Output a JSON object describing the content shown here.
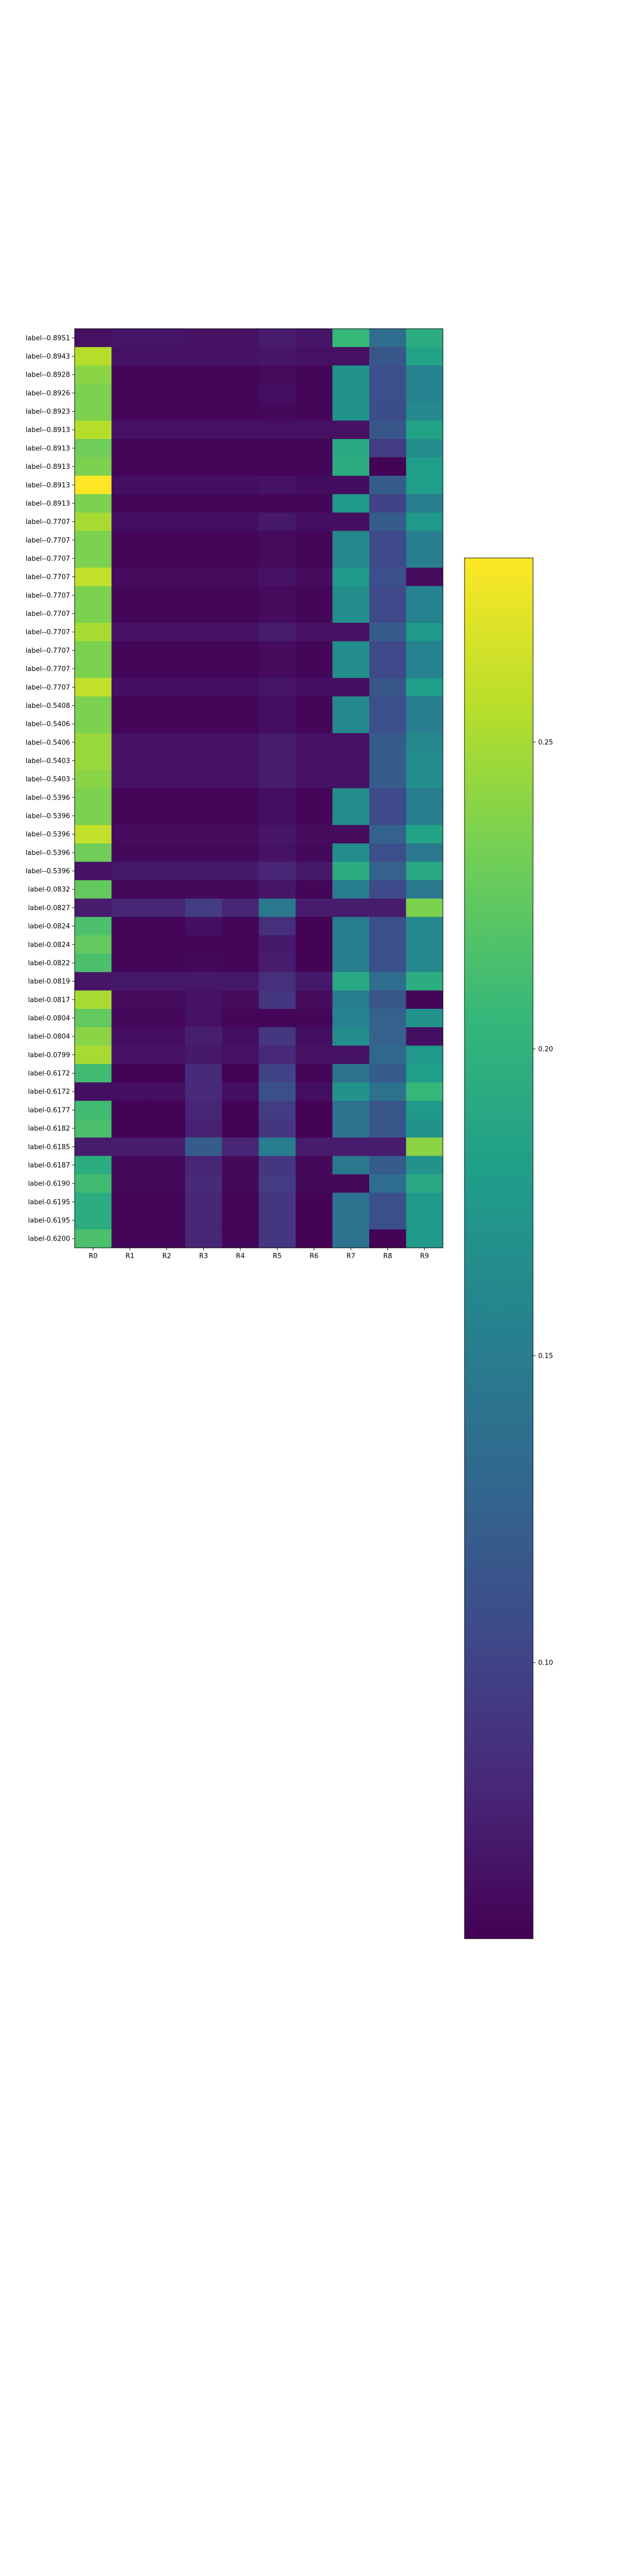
{
  "chart_data": {
    "type": "heatmap",
    "title": "",
    "xlabel": "",
    "ylabel": "",
    "colormap": "viridis",
    "vmin": 0.055,
    "vmax": 0.28,
    "columns": [
      "R0",
      "R1",
      "R2",
      "R3",
      "R4",
      "R5",
      "R6",
      "R7",
      "R8",
      "R9"
    ],
    "rows": [
      {
        "label": "label--0.8951",
        "values": [
          0.065,
          0.068,
          0.068,
          0.066,
          0.066,
          0.072,
          0.068,
          0.205,
          0.135,
          0.195
        ]
      },
      {
        "label": "label--0.8943",
        "values": [
          0.255,
          0.066,
          0.066,
          0.066,
          0.066,
          0.068,
          0.065,
          0.065,
          0.115,
          0.185
        ]
      },
      {
        "label": "label--0.8928",
        "values": [
          0.24,
          0.058,
          0.058,
          0.058,
          0.058,
          0.062,
          0.058,
          0.17,
          0.11,
          0.155
        ]
      },
      {
        "label": "label--0.8926",
        "values": [
          0.235,
          0.058,
          0.058,
          0.058,
          0.058,
          0.064,
          0.058,
          0.17,
          0.11,
          0.155
        ]
      },
      {
        "label": "label--0.8923",
        "values": [
          0.235,
          0.058,
          0.058,
          0.058,
          0.058,
          0.06,
          0.058,
          0.17,
          0.108,
          0.16
        ]
      },
      {
        "label": "label--0.8913",
        "values": [
          0.255,
          0.065,
          0.065,
          0.065,
          0.065,
          0.065,
          0.065,
          0.065,
          0.115,
          0.185
        ]
      },
      {
        "label": "label--0.8913",
        "values": [
          0.23,
          0.058,
          0.058,
          0.058,
          0.058,
          0.058,
          0.058,
          0.19,
          0.095,
          0.165
        ]
      },
      {
        "label": "label--0.8913",
        "values": [
          0.235,
          0.058,
          0.058,
          0.058,
          0.058,
          0.058,
          0.058,
          0.195,
          0.056,
          0.18
        ]
      },
      {
        "label": "label--0.8913",
        "values": [
          0.28,
          0.064,
          0.064,
          0.064,
          0.064,
          0.066,
          0.063,
          0.063,
          0.12,
          0.18
        ]
      },
      {
        "label": "label--0.8913",
        "values": [
          0.235,
          0.058,
          0.058,
          0.058,
          0.058,
          0.058,
          0.058,
          0.175,
          0.1,
          0.15
        ]
      },
      {
        "label": "label--0.7707",
        "values": [
          0.25,
          0.064,
          0.064,
          0.064,
          0.064,
          0.07,
          0.064,
          0.064,
          0.12,
          0.175
        ]
      },
      {
        "label": "label--0.7707",
        "values": [
          0.235,
          0.058,
          0.058,
          0.058,
          0.058,
          0.062,
          0.058,
          0.16,
          0.105,
          0.15
        ]
      },
      {
        "label": "label--0.7707",
        "values": [
          0.235,
          0.058,
          0.058,
          0.058,
          0.058,
          0.062,
          0.058,
          0.16,
          0.105,
          0.15
        ]
      },
      {
        "label": "label--0.7707",
        "values": [
          0.26,
          0.062,
          0.062,
          0.062,
          0.062,
          0.066,
          0.062,
          0.175,
          0.11,
          0.062
        ]
      },
      {
        "label": "label--0.7707",
        "values": [
          0.235,
          0.058,
          0.058,
          0.058,
          0.058,
          0.062,
          0.058,
          0.165,
          0.105,
          0.155
        ]
      },
      {
        "label": "label--0.7707",
        "values": [
          0.235,
          0.058,
          0.058,
          0.058,
          0.058,
          0.062,
          0.058,
          0.165,
          0.105,
          0.155
        ]
      },
      {
        "label": "label--0.7707",
        "values": [
          0.25,
          0.066,
          0.066,
          0.066,
          0.066,
          0.072,
          0.066,
          0.066,
          0.12,
          0.175
        ]
      },
      {
        "label": "label--0.7707",
        "values": [
          0.235,
          0.058,
          0.058,
          0.058,
          0.058,
          0.062,
          0.058,
          0.165,
          0.105,
          0.155
        ]
      },
      {
        "label": "label--0.7707",
        "values": [
          0.235,
          0.058,
          0.058,
          0.058,
          0.058,
          0.062,
          0.058,
          0.165,
          0.105,
          0.155
        ]
      },
      {
        "label": "label--0.7707",
        "values": [
          0.26,
          0.064,
          0.064,
          0.064,
          0.064,
          0.068,
          0.064,
          0.064,
          0.115,
          0.18
        ]
      },
      {
        "label": "label--0.5408",
        "values": [
          0.235,
          0.058,
          0.058,
          0.058,
          0.058,
          0.064,
          0.058,
          0.16,
          0.11,
          0.15
        ]
      },
      {
        "label": "label--0.5406",
        "values": [
          0.235,
          0.058,
          0.058,
          0.058,
          0.058,
          0.064,
          0.058,
          0.16,
          0.11,
          0.15
        ]
      },
      {
        "label": "label--0.5406",
        "values": [
          0.245,
          0.066,
          0.066,
          0.066,
          0.066,
          0.072,
          0.066,
          0.066,
          0.12,
          0.16
        ]
      },
      {
        "label": "label--0.5403",
        "values": [
          0.245,
          0.066,
          0.066,
          0.066,
          0.066,
          0.072,
          0.066,
          0.066,
          0.12,
          0.165
        ]
      },
      {
        "label": "label--0.5403",
        "values": [
          0.24,
          0.066,
          0.066,
          0.066,
          0.066,
          0.072,
          0.066,
          0.066,
          0.12,
          0.165
        ]
      },
      {
        "label": "label--0.5396",
        "values": [
          0.235,
          0.058,
          0.058,
          0.058,
          0.058,
          0.064,
          0.058,
          0.165,
          0.105,
          0.15
        ]
      },
      {
        "label": "label--0.5396",
        "values": [
          0.235,
          0.058,
          0.058,
          0.058,
          0.058,
          0.064,
          0.058,
          0.165,
          0.105,
          0.15
        ]
      },
      {
        "label": "label--0.5396",
        "values": [
          0.26,
          0.062,
          0.062,
          0.062,
          0.062,
          0.068,
          0.062,
          0.062,
          0.125,
          0.185
        ]
      },
      {
        "label": "label--0.5396",
        "values": [
          0.23,
          0.06,
          0.06,
          0.06,
          0.06,
          0.066,
          0.06,
          0.165,
          0.11,
          0.145
        ]
      },
      {
        "label": "label--0.5396",
        "values": [
          0.066,
          0.07,
          0.07,
          0.07,
          0.07,
          0.078,
          0.07,
          0.195,
          0.125,
          0.19
        ]
      },
      {
        "label": "label-0.0832",
        "values": [
          0.225,
          0.06,
          0.06,
          0.06,
          0.06,
          0.068,
          0.058,
          0.15,
          0.105,
          0.145
        ]
      },
      {
        "label": "label-0.0827",
        "values": [
          0.072,
          0.078,
          0.078,
          0.095,
          0.078,
          0.145,
          0.072,
          0.072,
          0.072,
          0.235
        ]
      },
      {
        "label": "label-0.0824",
        "values": [
          0.215,
          0.058,
          0.058,
          0.064,
          0.058,
          0.085,
          0.056,
          0.15,
          0.11,
          0.16
        ]
      },
      {
        "label": "label-0.0824",
        "values": [
          0.225,
          0.058,
          0.058,
          0.058,
          0.058,
          0.07,
          0.056,
          0.15,
          0.11,
          0.16
        ]
      },
      {
        "label": "label-0.0822",
        "values": [
          0.215,
          0.058,
          0.058,
          0.06,
          0.058,
          0.072,
          0.056,
          0.15,
          0.11,
          0.16
        ]
      },
      {
        "label": "label-0.0819",
        "values": [
          0.068,
          0.07,
          0.07,
          0.07,
          0.07,
          0.085,
          0.07,
          0.19,
          0.135,
          0.195
        ]
      },
      {
        "label": "label-0.0817",
        "values": [
          0.25,
          0.062,
          0.062,
          0.066,
          0.062,
          0.09,
          0.062,
          0.15,
          0.115,
          0.058
        ]
      },
      {
        "label": "label-0.0804",
        "values": [
          0.225,
          0.06,
          0.06,
          0.066,
          0.058,
          0.058,
          0.058,
          0.155,
          0.125,
          0.17
        ]
      },
      {
        "label": "label-0.0804",
        "values": [
          0.24,
          0.064,
          0.064,
          0.074,
          0.064,
          0.09,
          0.064,
          0.165,
          0.125,
          0.064
        ]
      },
      {
        "label": "label-0.0799",
        "values": [
          0.25,
          0.066,
          0.066,
          0.07,
          0.066,
          0.08,
          0.066,
          0.066,
          0.13,
          0.175
        ]
      },
      {
        "label": "label-0.6172",
        "values": [
          0.21,
          0.056,
          0.056,
          0.082,
          0.056,
          0.1,
          0.058,
          0.14,
          0.12,
          0.18
        ]
      },
      {
        "label": "label-0.6172",
        "values": [
          0.064,
          0.064,
          0.064,
          0.08,
          0.064,
          0.11,
          0.064,
          0.17,
          0.14,
          0.205
        ]
      },
      {
        "label": "label-0.6177",
        "values": [
          0.21,
          0.056,
          0.056,
          0.078,
          0.056,
          0.095,
          0.056,
          0.14,
          0.115,
          0.175
        ]
      },
      {
        "label": "label-0.6182",
        "values": [
          0.215,
          0.056,
          0.056,
          0.076,
          0.056,
          0.09,
          0.056,
          0.14,
          0.115,
          0.17
        ]
      },
      {
        "label": "label-0.6185",
        "values": [
          0.072,
          0.072,
          0.072,
          0.12,
          0.078,
          0.15,
          0.072,
          0.072,
          0.072,
          0.24
        ]
      },
      {
        "label": "label-0.6187",
        "values": [
          0.195,
          0.06,
          0.06,
          0.078,
          0.06,
          0.09,
          0.06,
          0.145,
          0.12,
          0.17
        ]
      },
      {
        "label": "label-0.6190",
        "values": [
          0.21,
          0.06,
          0.06,
          0.082,
          0.06,
          0.095,
          0.06,
          0.06,
          0.135,
          0.19
        ]
      },
      {
        "label": "label-0.6195",
        "values": [
          0.195,
          0.058,
          0.058,
          0.078,
          0.058,
          0.09,
          0.056,
          0.14,
          0.11,
          0.175
        ]
      },
      {
        "label": "label-0.6195",
        "values": [
          0.195,
          0.058,
          0.058,
          0.078,
          0.058,
          0.09,
          0.056,
          0.14,
          0.11,
          0.175
        ]
      },
      {
        "label": "label-0.6200",
        "values": [
          0.215,
          0.058,
          0.058,
          0.078,
          0.058,
          0.09,
          0.056,
          0.14,
          0.056,
          0.175
        ]
      }
    ],
    "colorbar": {
      "ticks": [
        0.1,
        0.15,
        0.2,
        0.25
      ],
      "tick_labels": [
        "0.10",
        "0.15",
        "0.20",
        "0.25"
      ]
    },
    "grid": false
  }
}
